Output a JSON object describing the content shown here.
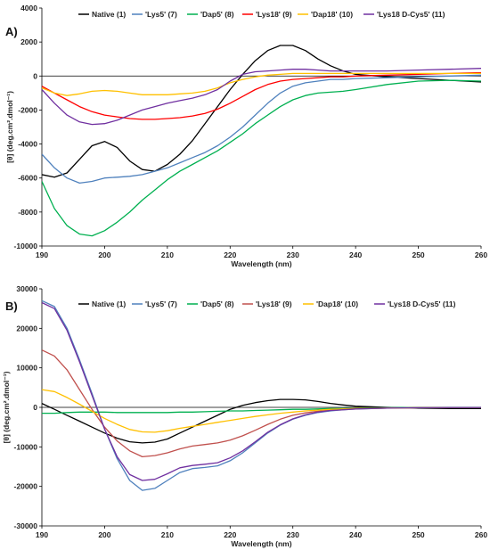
{
  "chart_data": [
    {
      "type": "line",
      "panel_label": "A)",
      "xlabel": "Wavelength (nm)",
      "ylabel": "[θ] (deg.cm².dmol⁻¹)",
      "xlim": [
        190,
        260
      ],
      "ylim": [
        -10000,
        4000
      ],
      "xticks": [
        190,
        200,
        210,
        220,
        230,
        240,
        250,
        260
      ],
      "yticks": [
        -10000,
        -8000,
        -6000,
        -4000,
        -2000,
        0,
        2000,
        4000
      ],
      "legend_position": "top",
      "grid": false,
      "series": [
        {
          "name": "Native (1)",
          "color": "#000000",
          "x": [
            190,
            192,
            194,
            196,
            198,
            200,
            202,
            204,
            206,
            208,
            210,
            212,
            214,
            216,
            218,
            220,
            222,
            224,
            226,
            228,
            230,
            232,
            234,
            236,
            238,
            240,
            245,
            250,
            255,
            260
          ],
          "y": [
            -5800,
            -5950,
            -5700,
            -4900,
            -4100,
            -3850,
            -4200,
            -5000,
            -5500,
            -5600,
            -5200,
            -4600,
            -3800,
            -2800,
            -1800,
            -800,
            100,
            900,
            1500,
            1800,
            1800,
            1500,
            1000,
            600,
            300,
            100,
            -50,
            -150,
            -250,
            -350
          ]
        },
        {
          "name": "'Lys5' (7)",
          "color": "#4f81bd",
          "x": [
            190,
            192,
            194,
            196,
            198,
            200,
            202,
            204,
            206,
            208,
            210,
            212,
            214,
            216,
            218,
            220,
            222,
            224,
            226,
            228,
            230,
            232,
            234,
            236,
            238,
            240,
            245,
            250,
            255,
            260
          ],
          "y": [
            -4600,
            -5400,
            -6000,
            -6300,
            -6200,
            -6000,
            -5950,
            -5900,
            -5800,
            -5600,
            -5400,
            -5100,
            -4800,
            -4500,
            -4100,
            -3600,
            -3000,
            -2300,
            -1600,
            -1000,
            -600,
            -400,
            -300,
            -200,
            -200,
            -150,
            -100,
            -50,
            0,
            50
          ]
        },
        {
          "name": "'Dap5' (8)",
          "color": "#00b050",
          "x": [
            190,
            192,
            194,
            196,
            198,
            200,
            202,
            204,
            206,
            208,
            210,
            212,
            214,
            216,
            218,
            220,
            222,
            224,
            226,
            228,
            230,
            232,
            234,
            236,
            238,
            240,
            245,
            250,
            255,
            260
          ],
          "y": [
            -6200,
            -7800,
            -8800,
            -9300,
            -9400,
            -9100,
            -8600,
            -8000,
            -7300,
            -6700,
            -6100,
            -5600,
            -5200,
            -4800,
            -4400,
            -3900,
            -3400,
            -2800,
            -2300,
            -1800,
            -1400,
            -1150,
            -1000,
            -950,
            -900,
            -800,
            -500,
            -300,
            -250,
            -300
          ]
        },
        {
          "name": "'Lys18' (9)",
          "color": "#ff0000",
          "x": [
            190,
            192,
            194,
            196,
            198,
            200,
            202,
            204,
            206,
            208,
            210,
            212,
            214,
            216,
            218,
            220,
            222,
            224,
            226,
            228,
            230,
            232,
            234,
            236,
            238,
            240,
            245,
            250,
            255,
            260
          ],
          "y": [
            -600,
            -1000,
            -1400,
            -1800,
            -2100,
            -2300,
            -2400,
            -2500,
            -2550,
            -2550,
            -2500,
            -2450,
            -2350,
            -2200,
            -1950,
            -1600,
            -1200,
            -800,
            -500,
            -300,
            -200,
            -150,
            -100,
            -50,
            -50,
            0,
            50,
            100,
            150,
            200
          ]
        },
        {
          "name": "'Dap18' (10)",
          "color": "#ffc000",
          "x": [
            190,
            192,
            194,
            196,
            198,
            200,
            202,
            204,
            206,
            208,
            210,
            212,
            214,
            216,
            218,
            220,
            222,
            224,
            226,
            228,
            230,
            232,
            234,
            236,
            238,
            240,
            245,
            250,
            255,
            260
          ],
          "y": [
            -700,
            -1000,
            -1150,
            -1050,
            -900,
            -850,
            -900,
            -1000,
            -1100,
            -1100,
            -1100,
            -1050,
            -1000,
            -900,
            -700,
            -400,
            -200,
            -50,
            50,
            100,
            150,
            150,
            150,
            150,
            150,
            150,
            150,
            150,
            150,
            150
          ]
        },
        {
          "name": "'Lys18 D-Cys5' (11)",
          "color": "#7030a0",
          "x": [
            190,
            192,
            194,
            196,
            198,
            200,
            202,
            204,
            206,
            208,
            210,
            212,
            214,
            216,
            218,
            220,
            222,
            224,
            226,
            228,
            230,
            232,
            234,
            236,
            238,
            240,
            245,
            250,
            255,
            260
          ],
          "y": [
            -800,
            -1600,
            -2300,
            -2700,
            -2850,
            -2800,
            -2600,
            -2300,
            -2000,
            -1800,
            -1600,
            -1450,
            -1300,
            -1100,
            -800,
            -300,
            100,
            250,
            300,
            350,
            400,
            400,
            350,
            300,
            300,
            300,
            300,
            350,
            400,
            450
          ]
        }
      ]
    },
    {
      "type": "line",
      "panel_label": "B)",
      "xlabel": "Wavelength (nm)",
      "ylabel": "[θ] (deg.cm².dmol⁻¹)",
      "xlim": [
        190,
        260
      ],
      "ylim": [
        -30000,
        30000
      ],
      "xticks": [
        190,
        200,
        210,
        220,
        230,
        240,
        250,
        260
      ],
      "yticks": [
        -30000,
        -20000,
        -10000,
        0,
        10000,
        20000,
        30000
      ],
      "legend_position": "top",
      "grid": false,
      "series": [
        {
          "name": "Native (1)",
          "color": "#000000",
          "x": [
            190,
            192,
            194,
            196,
            198,
            200,
            202,
            204,
            206,
            208,
            210,
            212,
            214,
            216,
            218,
            220,
            222,
            224,
            226,
            228,
            230,
            232,
            234,
            236,
            238,
            240,
            245,
            250,
            255,
            260
          ],
          "y": [
            1000,
            -500,
            -2000,
            -3500,
            -5000,
            -6500,
            -7800,
            -8700,
            -9000,
            -8800,
            -8000,
            -6500,
            -5000,
            -3500,
            -2000,
            -500,
            500,
            1200,
            1700,
            2000,
            2000,
            1900,
            1500,
            1000,
            600,
            300,
            0,
            -200,
            -300,
            -300
          ]
        },
        {
          "name": "'Lys5' (7)",
          "color": "#4f81bd",
          "x": [
            190,
            192,
            194,
            196,
            198,
            200,
            202,
            204,
            206,
            208,
            210,
            212,
            214,
            216,
            218,
            220,
            222,
            224,
            226,
            228,
            230,
            232,
            234,
            236,
            238,
            240,
            245,
            250,
            255,
            260
          ],
          "y": [
            27000,
            25500,
            20000,
            12000,
            3500,
            -5500,
            -13000,
            -18500,
            -21000,
            -20500,
            -18500,
            -16500,
            -15500,
            -15200,
            -14800,
            -13500,
            -11500,
            -9000,
            -6500,
            -4500,
            -3000,
            -2000,
            -1300,
            -900,
            -600,
            -400,
            -200,
            -100,
            -50,
            -50
          ]
        },
        {
          "name": "'Dap5' (8)",
          "color": "#00b050",
          "x": [
            190,
            192,
            194,
            196,
            198,
            200,
            202,
            204,
            206,
            208,
            210,
            212,
            214,
            216,
            218,
            220,
            222,
            224,
            226,
            228,
            230,
            232,
            234,
            236,
            238,
            240,
            245,
            250,
            255,
            260
          ],
          "y": [
            -1500,
            -1500,
            -1300,
            -1200,
            -1200,
            -1200,
            -1300,
            -1300,
            -1300,
            -1300,
            -1300,
            -1200,
            -1200,
            -1100,
            -1000,
            -900,
            -900,
            -800,
            -700,
            -600,
            -500,
            -500,
            -400,
            -300,
            -300,
            -200,
            -100,
            0,
            0,
            0
          ]
        },
        {
          "name": "'Lys18' (9)",
          "color": "#c0504d",
          "x": [
            190,
            192,
            194,
            196,
            198,
            200,
            202,
            204,
            206,
            208,
            210,
            212,
            214,
            216,
            218,
            220,
            222,
            224,
            226,
            228,
            230,
            232,
            234,
            236,
            238,
            240,
            245,
            250,
            255,
            260
          ],
          "y": [
            14500,
            13000,
            9500,
            4500,
            -500,
            -5000,
            -8500,
            -11000,
            -12500,
            -12200,
            -11500,
            -10500,
            -9800,
            -9400,
            -9000,
            -8300,
            -7200,
            -5800,
            -4300,
            -3000,
            -2000,
            -1400,
            -1000,
            -700,
            -500,
            -300,
            -200,
            -100,
            -50,
            -50
          ]
        },
        {
          "name": "'Dap18' (10)",
          "color": "#ffc000",
          "x": [
            190,
            192,
            194,
            196,
            198,
            200,
            202,
            204,
            206,
            208,
            210,
            212,
            214,
            216,
            218,
            220,
            222,
            224,
            226,
            228,
            230,
            232,
            234,
            236,
            238,
            240,
            245,
            250,
            255,
            260
          ],
          "y": [
            4500,
            4000,
            2500,
            800,
            -1000,
            -2800,
            -4300,
            -5600,
            -6200,
            -6300,
            -5900,
            -5300,
            -4800,
            -4300,
            -3800,
            -3300,
            -2800,
            -2300,
            -1900,
            -1500,
            -1200,
            -900,
            -700,
            -500,
            -400,
            -300,
            -200,
            -100,
            -50,
            -50
          ]
        },
        {
          "name": "'Lys18 D-Cys5' (11)",
          "color": "#7030a0",
          "x": [
            190,
            192,
            194,
            196,
            198,
            200,
            202,
            204,
            206,
            208,
            210,
            212,
            214,
            216,
            218,
            220,
            222,
            224,
            226,
            228,
            230,
            232,
            234,
            236,
            238,
            240,
            245,
            250,
            255,
            260
          ],
          "y": [
            26500,
            25000,
            19500,
            11500,
            3000,
            -5500,
            -12500,
            -17000,
            -18500,
            -18200,
            -16800,
            -15300,
            -14700,
            -14400,
            -14000,
            -12800,
            -11000,
            -8700,
            -6300,
            -4400,
            -2900,
            -1900,
            -1200,
            -800,
            -600,
            -400,
            -200,
            -100,
            -50,
            -50
          ]
        }
      ]
    }
  ]
}
